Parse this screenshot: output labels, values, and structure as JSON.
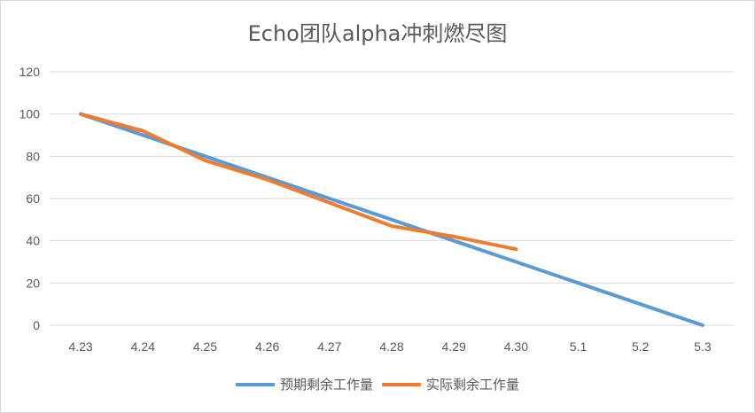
{
  "chart_data": {
    "type": "line",
    "title": "Echo团队alpha冲刺燃尽图",
    "categories": [
      "4.23",
      "4.24",
      "4.25",
      "4.26",
      "4.27",
      "4.28",
      "4.29",
      "4.30",
      "5.1",
      "5.2",
      "5.3"
    ],
    "y_ticks": [
      "0",
      "20",
      "40",
      "60",
      "80",
      "100",
      "120"
    ],
    "ylim": [
      0,
      120
    ],
    "grid": true,
    "legend_position": "bottom",
    "series": [
      {
        "name": "预期剩余工作量",
        "color": "#5b9bd5",
        "values": [
          100,
          90,
          80,
          70,
          60,
          50,
          40,
          30,
          20,
          10,
          0
        ]
      },
      {
        "name": "实际剩余工作量",
        "color": "#ed7d31",
        "values": [
          100,
          92,
          78,
          69,
          58,
          47,
          42,
          36,
          null,
          null,
          null
        ]
      }
    ]
  }
}
